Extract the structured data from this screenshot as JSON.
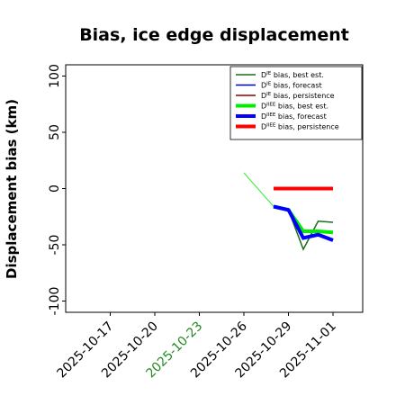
{
  "chart_data": {
    "type": "line",
    "title": "Bias, ice edge displacement",
    "ylabel": "Displacement bias (km)",
    "xlim": [
      "2025-10-14",
      "2025-11-03"
    ],
    "xticks": [
      "2025-10-17",
      "2025-10-20",
      "2025-10-23",
      "2025-10-26",
      "2025-10-29",
      "2025-11-01"
    ],
    "xtick_colors": [
      "#000000",
      "#000000",
      "#228b22",
      "#000000",
      "#000000",
      "#000000"
    ],
    "ylim": [
      -110,
      110
    ],
    "yticks": [
      -100,
      -50,
      0,
      50,
      100
    ],
    "legend": "upper right",
    "series": [
      {
        "x": [
          "2025-10-26",
          "2025-10-28"
        ],
        "values": [
          14,
          -16
        ],
        "color": "#33ee33",
        "linewidth": 1
      },
      {
        "name": "DIE bias, best est.",
        "color": "#1a6e1a",
        "linewidth": 1.5,
        "x": [
          "2025-10-28",
          "2025-10-29",
          "2025-10-30",
          "2025-10-31",
          "2025-11-01"
        ],
        "values": [
          -16,
          -19,
          -54,
          -29,
          -30
        ]
      },
      {
        "name": "DIE bias, forecast",
        "color": "#0000cc",
        "linewidth": 1.5,
        "x": [
          "2025-10-28",
          "2025-10-29",
          "2025-10-30",
          "2025-10-31",
          "2025-11-01"
        ],
        "values": [
          -16,
          -18,
          -43,
          -40,
          -45
        ]
      },
      {
        "name": "DIE bias, persistence",
        "color": "#8b0000",
        "linewidth": 1.5,
        "x": [
          "2025-10-28",
          "2025-10-29",
          "2025-10-30",
          "2025-10-31",
          "2025-11-01"
        ],
        "values": [
          0,
          0,
          0,
          0,
          0
        ]
      },
      {
        "name": "DIIEE bias, best est.",
        "color": "#00ee00",
        "linewidth": 4,
        "x": [
          "2025-10-28",
          "2025-10-29",
          "2025-10-30",
          "2025-10-31",
          "2025-11-01"
        ],
        "values": [
          -16,
          -19,
          -38,
          -38,
          -39
        ]
      },
      {
        "name": "DIIEE bias, forecast",
        "color": "#0000ff",
        "linewidth": 4,
        "x": [
          "2025-10-28",
          "2025-10-29",
          "2025-10-30",
          "2025-10-31",
          "2025-11-01"
        ],
        "values": [
          -16,
          -19,
          -44,
          -41,
          -46
        ]
      },
      {
        "name": "DIIEE bias, persistence",
        "color": "#ff0000",
        "linewidth": 4,
        "x": [
          "2025-10-28",
          "2025-10-29",
          "2025-10-30",
          "2025-10-31",
          "2025-11-01"
        ],
        "values": [
          0,
          0,
          0,
          0,
          0
        ]
      }
    ]
  }
}
